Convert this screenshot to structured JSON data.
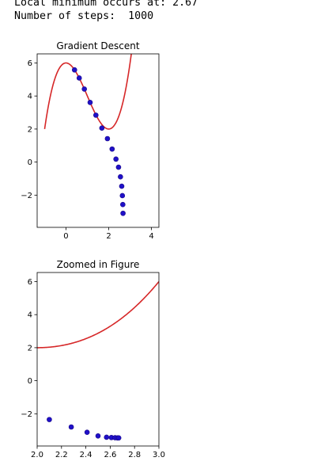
{
  "output": {
    "line1": "Local minimum occurs at: 2.67",
    "line2": "Number of steps:  1000"
  },
  "colors": {
    "curve": "#d62728",
    "points": "#1f10c8"
  },
  "chart_data": [
    {
      "type": "line",
      "title": "Gradient Descent",
      "xlabel": "",
      "ylabel": "",
      "xlim": [
        -1.35,
        4.35
      ],
      "ylim": [
        -3.95,
        6.55
      ],
      "xticks": [
        0,
        2,
        4
      ],
      "xtick_labels": [
        "0",
        "2",
        "4"
      ],
      "yticks": [
        -2,
        0,
        2,
        4,
        6
      ],
      "ytick_labels": [
        "−2",
        "0",
        "2",
        "4",
        "6"
      ],
      "curve": {
        "function": "x^3 - 3x^2 + 6",
        "x_range": [
          -1,
          4
        ]
      },
      "points": [
        {
          "x": 0.4,
          "y": 5.58
        },
        {
          "x": 0.62,
          "y": 5.09
        },
        {
          "x": 0.86,
          "y": 4.42
        },
        {
          "x": 1.13,
          "y": 3.61
        },
        {
          "x": 1.4,
          "y": 2.84
        },
        {
          "x": 1.68,
          "y": 2.06
        },
        {
          "x": 1.94,
          "y": 1.42
        },
        {
          "x": 2.16,
          "y": 0.79
        },
        {
          "x": 2.34,
          "y": 0.18
        },
        {
          "x": 2.46,
          "y": -0.31
        },
        {
          "x": 2.55,
          "y": -0.89
        },
        {
          "x": 2.61,
          "y": -1.46
        },
        {
          "x": 2.64,
          "y": -2.03
        },
        {
          "x": 2.66,
          "y": -2.57
        },
        {
          "x": 2.67,
          "y": -3.1
        }
      ]
    },
    {
      "type": "line",
      "title": "Zoomed in Figure",
      "xlabel": "",
      "ylabel": "",
      "xlim": [
        2.0,
        3.0
      ],
      "ylim": [
        -3.95,
        6.55
      ],
      "xticks": [
        2.0,
        2.2,
        2.4,
        2.6,
        2.8,
        3.0
      ],
      "xtick_labels": [
        "2.0",
        "2.2",
        "2.4",
        "2.6",
        "2.8",
        "3.0"
      ],
      "yticks": [
        -2,
        0,
        2,
        4,
        6
      ],
      "ytick_labels": [
        "−2",
        "0",
        "2",
        "4",
        "6"
      ],
      "curve": {
        "function": "x^3 - 3x^2 + 6",
        "x_range": [
          2.0,
          3.0
        ]
      },
      "points": [
        {
          "x": 2.1,
          "y": -2.35
        },
        {
          "x": 2.28,
          "y": -2.8
        },
        {
          "x": 2.41,
          "y": -3.12
        },
        {
          "x": 2.5,
          "y": -3.34
        },
        {
          "x": 2.57,
          "y": -3.42
        },
        {
          "x": 2.61,
          "y": -3.44
        },
        {
          "x": 2.64,
          "y": -3.45
        },
        {
          "x": 2.66,
          "y": -3.46
        },
        {
          "x": 2.67,
          "y": -3.46
        }
      ]
    }
  ]
}
